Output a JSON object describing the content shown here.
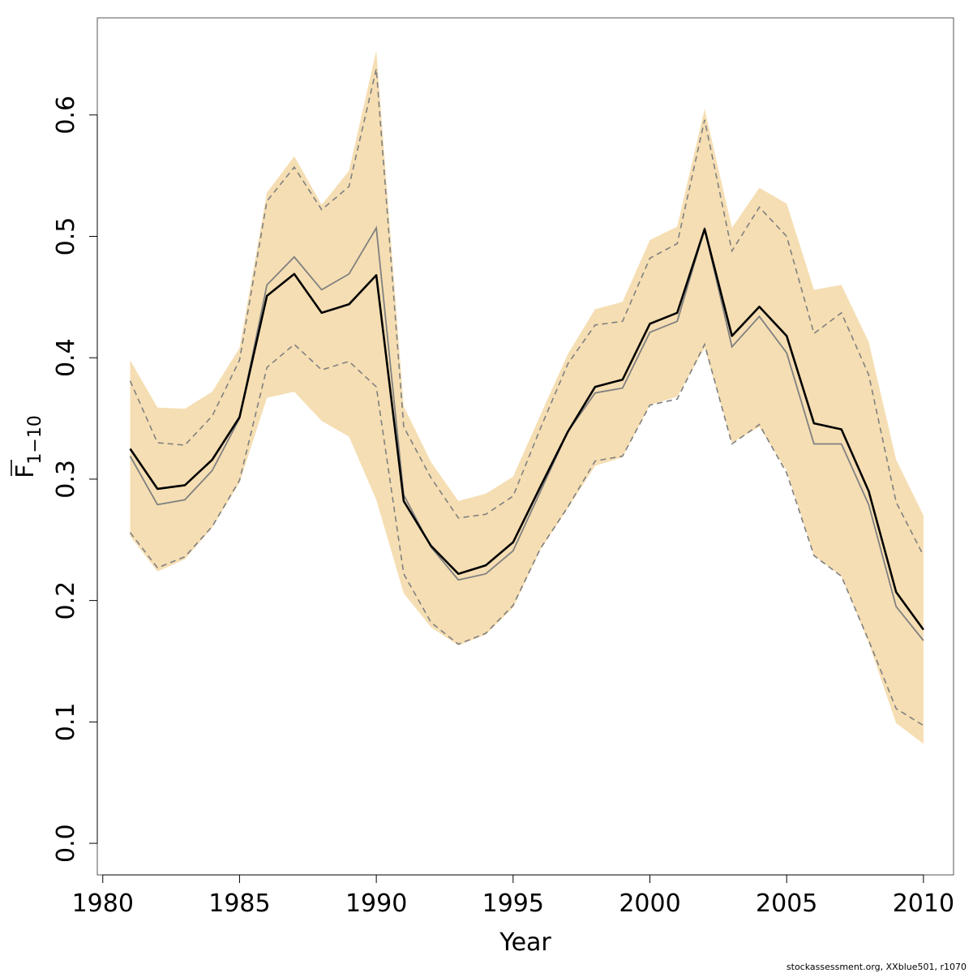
{
  "chart_data": {
    "type": "line",
    "title": "",
    "xlabel": "Year",
    "ylabel": {
      "main": "F",
      "subscript": "1−10"
    },
    "xlim": [
      1979.8,
      2011.1
    ],
    "ylim": [
      -0.026,
      0.68
    ],
    "xticks": [
      "1980",
      "1985",
      "1990",
      "1995",
      "2000",
      "2005",
      "2010"
    ],
    "yticks": [
      "0.0",
      "0.1",
      "0.2",
      "0.3",
      "0.4",
      "0.5",
      "0.6"
    ],
    "grid": false,
    "legend": "none",
    "x": [
      1981,
      1982,
      1983,
      1984,
      1985,
      1986,
      1987,
      1988,
      1989,
      1990,
      1991,
      1992,
      1993,
      1994,
      1995,
      1996,
      1997,
      1998,
      1999,
      2000,
      2001,
      2002,
      2003,
      2004,
      2005,
      2006,
      2007,
      2008,
      2009,
      2010
    ],
    "series": [
      {
        "role": "band_upper",
        "values": [
          0.398,
          0.359,
          0.358,
          0.372,
          0.408,
          0.536,
          0.566,
          0.526,
          0.554,
          0.653,
          0.36,
          0.314,
          0.282,
          0.288,
          0.302,
          0.353,
          0.403,
          0.44,
          0.446,
          0.497,
          0.508,
          0.605,
          0.507,
          0.54,
          0.527,
          0.456,
          0.46,
          0.413,
          0.316,
          0.27
        ]
      },
      {
        "role": "band_lower",
        "values": [
          0.253,
          0.224,
          0.234,
          0.26,
          0.297,
          0.367,
          0.372,
          0.348,
          0.335,
          0.283,
          0.206,
          0.178,
          0.163,
          0.172,
          0.194,
          0.242,
          0.276,
          0.311,
          0.318,
          0.361,
          0.368,
          0.408,
          0.33,
          0.343,
          0.307,
          0.237,
          0.22,
          0.165,
          0.099,
          0.082
        ]
      },
      {
        "role": "dashed_upper",
        "values": [
          0.381,
          0.33,
          0.328,
          0.352,
          0.398,
          0.529,
          0.557,
          0.522,
          0.541,
          0.638,
          0.343,
          0.301,
          0.268,
          0.271,
          0.286,
          0.342,
          0.395,
          0.427,
          0.43,
          0.482,
          0.494,
          0.596,
          0.488,
          0.524,
          0.5,
          0.42,
          0.437,
          0.386,
          0.281,
          0.237
        ]
      },
      {
        "role": "dashed_lower",
        "values": [
          0.256,
          0.227,
          0.236,
          0.261,
          0.299,
          0.392,
          0.411,
          0.39,
          0.397,
          0.376,
          0.222,
          0.182,
          0.164,
          0.173,
          0.196,
          0.243,
          0.277,
          0.315,
          0.319,
          0.361,
          0.366,
          0.411,
          0.329,
          0.345,
          0.305,
          0.237,
          0.22,
          0.167,
          0.111,
          0.097
        ]
      },
      {
        "role": "grey_line",
        "values": [
          0.319,
          0.279,
          0.283,
          0.307,
          0.35,
          0.46,
          0.483,
          0.456,
          0.469,
          0.507,
          0.287,
          0.244,
          0.217,
          0.222,
          0.241,
          0.29,
          0.339,
          0.371,
          0.375,
          0.421,
          0.43,
          0.506,
          0.409,
          0.434,
          0.404,
          0.329,
          0.329,
          0.279,
          0.195,
          0.167
        ]
      },
      {
        "role": "black_line",
        "values": [
          0.325,
          0.292,
          0.295,
          0.316,
          0.351,
          0.451,
          0.469,
          0.437,
          0.444,
          0.468,
          0.282,
          0.245,
          0.222,
          0.229,
          0.248,
          0.294,
          0.339,
          0.376,
          0.382,
          0.428,
          0.437,
          0.506,
          0.418,
          0.442,
          0.418,
          0.346,
          0.341,
          0.29,
          0.207,
          0.176
        ]
      }
    ],
    "colors": {
      "band": "#f5deb3",
      "dashed": "#808080",
      "grey_line": "#808080",
      "black_line": "#000000",
      "axis": "#555555"
    }
  },
  "footer": {
    "credit": "stockassessment.org, XXblue501, r1070"
  }
}
